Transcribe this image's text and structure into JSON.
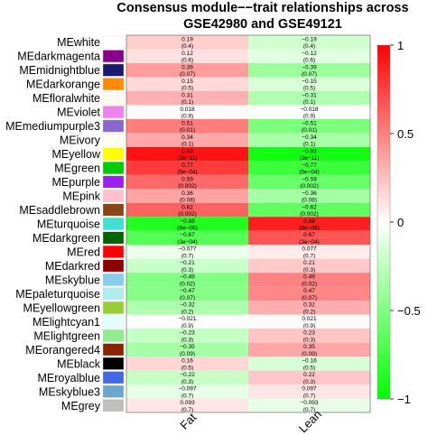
{
  "chart_data": {
    "type": "heatmap",
    "title_lines": [
      "Consensus module−−trait relationships across",
      "GSE42980 and GSE49121"
    ],
    "columns": [
      "Fat",
      "Lean"
    ],
    "rows": [
      {
        "name": "MEwhite",
        "color": "#ffffff",
        "cells": [
          {
            "r": 0.19,
            "r_text": "0.19",
            "p": "(0.4)"
          },
          {
            "r": -0.19,
            "r_text": "−0.19",
            "p": "(0.4)"
          }
        ]
      },
      {
        "name": "MEdarkmagenta",
        "color": "#8b008b",
        "cells": [
          {
            "r": 0.12,
            "r_text": "0.12",
            "p": "(0.6)"
          },
          {
            "r": -0.12,
            "r_text": "−0.12",
            "p": "(0.6)"
          }
        ]
      },
      {
        "name": "MEmidnightblue",
        "color": "#191970",
        "cells": [
          {
            "r": 0.39,
            "r_text": "0.39",
            "p": "(0.07)"
          },
          {
            "r": -0.39,
            "r_text": "−0.39",
            "p": "(0.07)"
          }
        ]
      },
      {
        "name": "MEdarkorange",
        "color": "#ff8c00",
        "cells": [
          {
            "r": 0.15,
            "r_text": "0.15",
            "p": "(0.5)"
          },
          {
            "r": -0.15,
            "r_text": "−0.15",
            "p": "(0.5)"
          }
        ]
      },
      {
        "name": "MEfloralwhite",
        "color": "#fffaf0",
        "cells": [
          {
            "r": 0.31,
            "r_text": "0.31",
            "p": "(0.1)"
          },
          {
            "r": -0.31,
            "r_text": "−0.31",
            "p": "(0.1)"
          }
        ]
      },
      {
        "name": "MEviolet",
        "color": "#ee82ee",
        "cells": [
          {
            "r": 0.018,
            "r_text": "0.018",
            "p": "(0.9)"
          },
          {
            "r": -0.018,
            "r_text": "−0.018",
            "p": "(0.9)"
          }
        ]
      },
      {
        "name": "MEmediumpurple3",
        "color": "#8968cd",
        "cells": [
          {
            "r": 0.51,
            "r_text": "0.51",
            "p": "(0.01)"
          },
          {
            "r": -0.51,
            "r_text": "−0.51",
            "p": "(0.01)"
          }
        ]
      },
      {
        "name": "MEivory",
        "color": "#fffff0",
        "cells": [
          {
            "r": 0.34,
            "r_text": "0.34",
            "p": "(0.1)"
          },
          {
            "r": -0.34,
            "r_text": "−0.34",
            "p": "(0.1)"
          }
        ]
      },
      {
        "name": "MEyellow",
        "color": "#ffff00",
        "cells": [
          {
            "r": 0.93,
            "r_text": "0.93",
            "p": "(3e−11)"
          },
          {
            "r": -0.93,
            "r_text": "−0.93",
            "p": "(3e−11)"
          }
        ]
      },
      {
        "name": "MEgreen",
        "color": "#00cd00",
        "cells": [
          {
            "r": 0.77,
            "r_text": "0.77",
            "p": "(5e−04)"
          },
          {
            "r": -0.77,
            "r_text": "−0.77",
            "p": "(5e−04)"
          }
        ]
      },
      {
        "name": "MEpurple",
        "color": "#a020f0",
        "cells": [
          {
            "r": 0.59,
            "r_text": "0.59",
            "p": "(0.002)"
          },
          {
            "r": -0.59,
            "r_text": "−0.59",
            "p": "(0.002)"
          }
        ]
      },
      {
        "name": "MEpink",
        "color": "#ffc0cb",
        "cells": [
          {
            "r": 0.36,
            "r_text": "0.36",
            "p": "(0.08)"
          },
          {
            "r": -0.36,
            "r_text": "−0.36",
            "p": "(0.08)"
          }
        ]
      },
      {
        "name": "MEsaddlebrown",
        "color": "#8b4513",
        "cells": [
          {
            "r": 0.62,
            "r_text": "0.62",
            "p": "(0.002)"
          },
          {
            "r": -0.62,
            "r_text": "−0.62",
            "p": "(0.002)"
          }
        ]
      },
      {
        "name": "MEturquoise",
        "color": "#40e0d0",
        "cells": [
          {
            "r": -0.88,
            "r_text": "−0.88",
            "p": "(6e−06)"
          },
          {
            "r": 0.88,
            "r_text": "0.88",
            "p": "(6e−06)"
          }
        ]
      },
      {
        "name": "MEdarkgreen",
        "color": "#006400",
        "cells": [
          {
            "r": -0.67,
            "r_text": "−0.67",
            "p": "(3e−04)"
          },
          {
            "r": 0.67,
            "r_text": "0.67",
            "p": "(3e−04)"
          }
        ]
      },
      {
        "name": "MEred",
        "color": "#ff0000",
        "cells": [
          {
            "r": -0.077,
            "r_text": "−0.077",
            "p": "(0.7)"
          },
          {
            "r": 0.077,
            "r_text": "0.077",
            "p": "(0.7)"
          }
        ]
      },
      {
        "name": "MEdarkred",
        "color": "#8b0000",
        "cells": [
          {
            "r": -0.21,
            "r_text": "−0.21",
            "p": "(0.3)"
          },
          {
            "r": 0.21,
            "r_text": "0.21",
            "p": "(0.3)"
          }
        ]
      },
      {
        "name": "MEskyblue",
        "color": "#87ceeb",
        "cells": [
          {
            "r": -0.49,
            "r_text": "−0.49",
            "p": "(0.02)"
          },
          {
            "r": 0.49,
            "r_text": "0.49",
            "p": "(0.02)"
          }
        ]
      },
      {
        "name": "MEpaleturquoise",
        "color": "#afeeee",
        "cells": [
          {
            "r": -0.47,
            "r_text": "−0.47",
            "p": "(0.07)"
          },
          {
            "r": 0.47,
            "r_text": "0.47",
            "p": "(0.07)"
          }
        ]
      },
      {
        "name": "MEyellowgreen",
        "color": "#9acd32",
        "cells": [
          {
            "r": -0.32,
            "r_text": "−0.32",
            "p": "(0.2)"
          },
          {
            "r": 0.32,
            "r_text": "0.32",
            "p": "(0.2)"
          }
        ]
      },
      {
        "name": "MElightcyan1",
        "color": "#e0ffff",
        "cells": [
          {
            "r": -0.021,
            "r_text": "−0.021",
            "p": "(0.9)"
          },
          {
            "r": 0.021,
            "r_text": "0.021",
            "p": "(0.9)"
          }
        ]
      },
      {
        "name": "MElightgreen",
        "color": "#90ee90",
        "cells": [
          {
            "r": -0.23,
            "r_text": "−0.23",
            "p": "(0.3)"
          },
          {
            "r": 0.23,
            "r_text": "0.23",
            "p": "(0.3)"
          }
        ]
      },
      {
        "name": "MEorangered4",
        "color": "#8b2500",
        "cells": [
          {
            "r": -0.35,
            "r_text": "−0.35",
            "p": "(0.09)"
          },
          {
            "r": 0.35,
            "r_text": "0.35",
            "p": "(0.09)"
          }
        ]
      },
      {
        "name": "MEblack",
        "color": "#000000",
        "cells": [
          {
            "r": 0.16,
            "r_text": "0.16",
            "p": "(0.5)"
          },
          {
            "r": -0.16,
            "r_text": "−0.16",
            "p": "(0.5)"
          }
        ]
      },
      {
        "name": "MEroyalblue",
        "color": "#4169e1",
        "cells": [
          {
            "r": -0.22,
            "r_text": "−0.22",
            "p": "(0.3)"
          },
          {
            "r": 0.22,
            "r_text": "0.22",
            "p": "(0.3)"
          }
        ]
      },
      {
        "name": "MEskyblue3",
        "color": "#6ca6cd",
        "cells": [
          {
            "r": -0.097,
            "r_text": "−0.097",
            "p": "(0.7)"
          },
          {
            "r": 0.097,
            "r_text": "0.097",
            "p": "(0.7)"
          }
        ]
      },
      {
        "name": "MEgrey",
        "color": "#bebebe",
        "cells": [
          {
            "r": 0.093,
            "r_text": "0.093",
            "p": "(0.7)"
          },
          {
            "r": -0.093,
            "r_text": "−0.093",
            "p": "(0.7)"
          }
        ]
      }
    ],
    "color_scale": {
      "range": [
        -1,
        1
      ],
      "low_color": "#00ff00",
      "mid_color": "#ffffff",
      "high_color": "#ff0000",
      "ticks": [
        {
          "value": 1,
          "label": "1"
        },
        {
          "value": 0.5,
          "label": "0.5"
        },
        {
          "value": 0,
          "label": "0"
        },
        {
          "value": -0.5,
          "label": "−0.5"
        },
        {
          "value": -1,
          "label": "−1"
        }
      ]
    }
  }
}
